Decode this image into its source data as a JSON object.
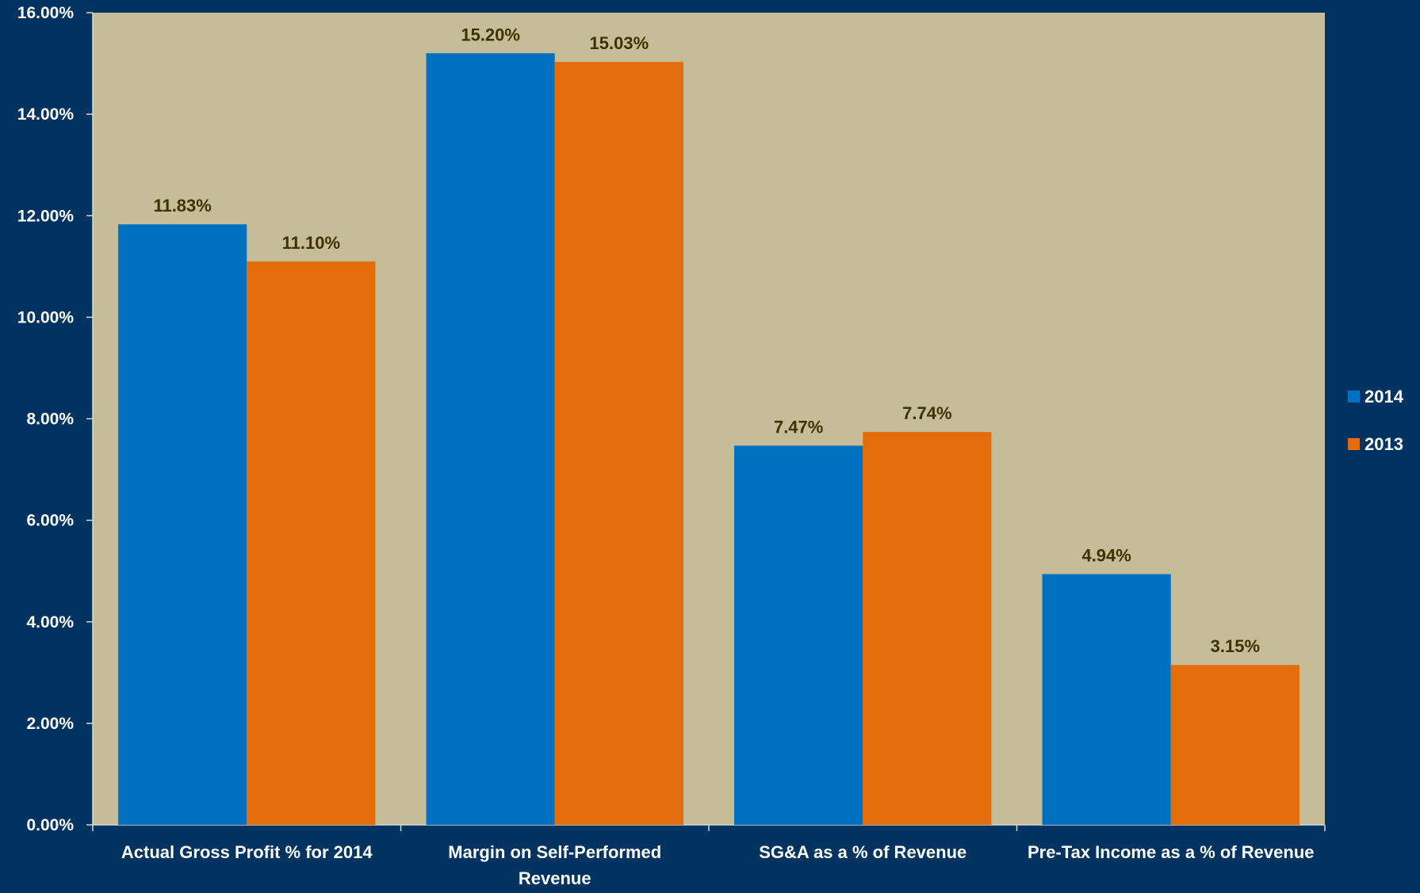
{
  "chart_data": {
    "type": "bar",
    "categories": [
      [
        "Actual Gross Profit % for 2014"
      ],
      [
        "Margin on Self-Performed",
        "Revenue"
      ],
      [
        "SG&A as a % of Revenue"
      ],
      [
        "Pre-Tax Income as a % of Revenue"
      ]
    ],
    "series": [
      {
        "name": "2014",
        "values": [
          11.83,
          15.2,
          7.47,
          4.94
        ],
        "labels": [
          "11.83%",
          "15.20%",
          "7.47%",
          "4.94%"
        ],
        "color": "#0070c0"
      },
      {
        "name": "2013",
        "values": [
          11.1,
          15.03,
          7.74,
          3.15
        ],
        "labels": [
          "11.10%",
          "15.03%",
          "7.74%",
          "3.15%"
        ],
        "color": "#e46c0a"
      }
    ],
    "ylim": [
      0,
      16
    ],
    "y_ticks": [
      "0.00%",
      "2.00%",
      "4.00%",
      "6.00%",
      "8.00%",
      "10.00%",
      "12.00%",
      "14.00%",
      "16.00%"
    ],
    "title": "",
    "xlabel": "",
    "ylabel": "",
    "legend_position": "right",
    "grid": false
  },
  "colors": {
    "background": "#00335f",
    "plot_area": "#c4bd97",
    "axis_text": "#ffffff",
    "data_label": "#3f3100",
    "axis_line": "#d9d9d9"
  }
}
